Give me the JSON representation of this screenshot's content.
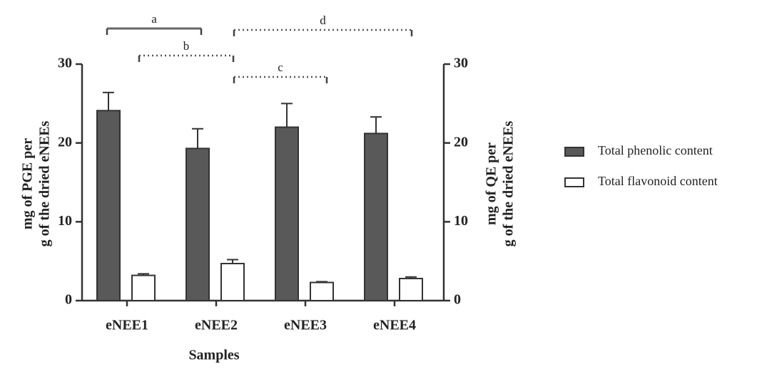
{
  "chart_data": {
    "type": "bar",
    "categories": [
      "eNEE1",
      "eNEE2",
      "eNEE3",
      "eNEE4"
    ],
    "series": [
      {
        "name": "Total phenolic content",
        "color": "#595959",
        "values": [
          24.1,
          19.3,
          22.0,
          21.2
        ],
        "errors": [
          2.3,
          2.5,
          3.0,
          2.1
        ]
      },
      {
        "name": "Total flavonoid content",
        "color": "#ffffff",
        "axis": "y2",
        "values": [
          3.2,
          4.7,
          2.3,
          2.8
        ],
        "errors": [
          0.2,
          0.5,
          0.1,
          0.2
        ]
      }
    ],
    "xlabel": "Samples",
    "ylabel": [
      "mg of PGE per",
      "g of the dried eNEEs"
    ],
    "y2label": [
      "mg of QE per",
      "g of the dried eNEEs"
    ],
    "ylim": [
      0,
      30
    ],
    "yticks": [
      0,
      10,
      20,
      30
    ],
    "y2lim": [
      0,
      30
    ],
    "y2ticks": [
      0,
      10,
      20,
      30
    ],
    "annotations": [
      {
        "label": "a",
        "style": "solid"
      },
      {
        "label": "b",
        "style": "dotted"
      },
      {
        "label": "c",
        "style": "dotted"
      },
      {
        "label": "d",
        "style": "dotted"
      }
    ],
    "legend": "right"
  }
}
